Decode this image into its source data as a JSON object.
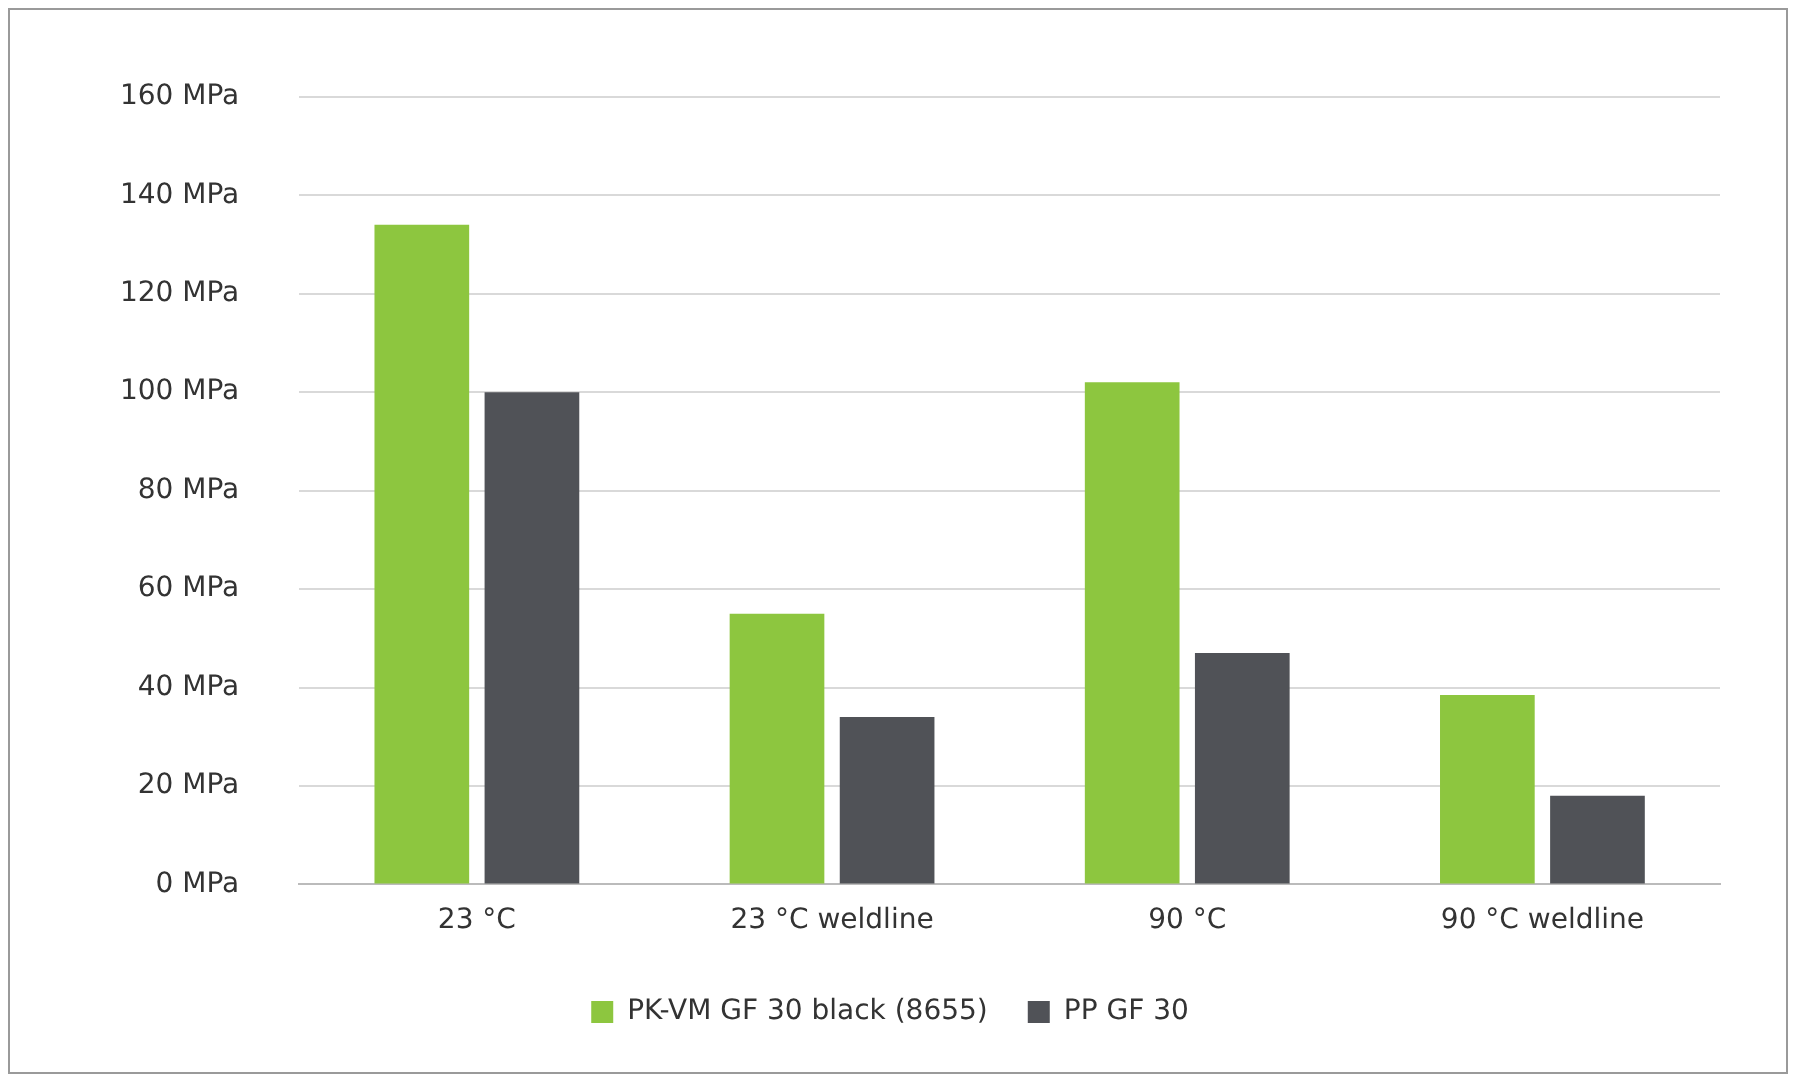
{
  "chart_data": {
    "type": "bar",
    "categories": [
      "23 °C",
      "23 °C weldline",
      "90 °C",
      "90 °C weldline"
    ],
    "series": [
      {
        "name": "PK-VM GF 30 black (8655)",
        "color": "#8dc63f",
        "values": [
          134,
          55,
          102,
          38.5
        ]
      },
      {
        "name": "PP GF 30",
        "color": "#505257",
        "values": [
          100,
          34,
          47,
          18
        ]
      }
    ],
    "ylim": [
      0,
      160
    ],
    "yticks": [
      {
        "value": 0,
        "label": "0 MPa"
      },
      {
        "value": 20,
        "label": "20 MPa"
      },
      {
        "value": 40,
        "label": "40 MPa"
      },
      {
        "value": 60,
        "label": "60 MPa"
      },
      {
        "value": 80,
        "label": "80 MPa"
      },
      {
        "value": 100,
        "label": "100 MPa"
      },
      {
        "value": 120,
        "label": "120 MPa"
      },
      {
        "value": 140,
        "label": "140 MPa"
      },
      {
        "value": 160,
        "label": "160 MPa"
      }
    ],
    "grid": "y",
    "legend": "bottom"
  }
}
